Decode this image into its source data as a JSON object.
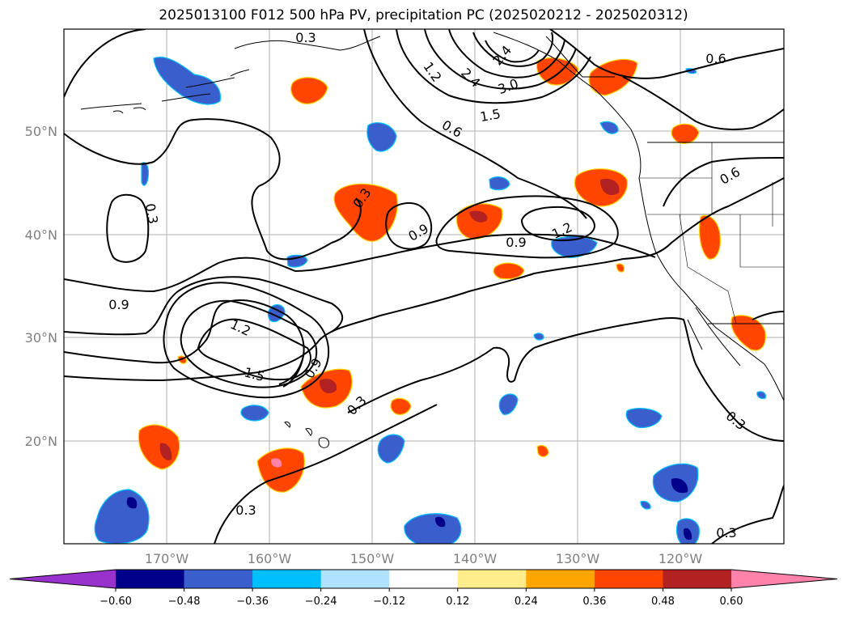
{
  "title": "2025013100 F012 500 hPa PV, precipitation PC (2025020212 - 2025020312)",
  "lat_labels": [
    "50°N",
    "40°N",
    "30°N",
    "20°N"
  ],
  "lon_labels": [
    "170°W",
    "160°W",
    "150°W",
    "140°W",
    "130°W",
    "120°W"
  ],
  "contour_labels": [
    "0.3",
    "0.3",
    "0.3",
    "0.3",
    "0.3",
    "0.3",
    "0.3",
    "0.6",
    "0.6",
    "0.6",
    "0.9",
    "0.9",
    "0.9",
    "0.9",
    "1.2",
    "1.2",
    "1.2",
    "1.5",
    "1.5",
    "2.4",
    "2.4",
    "3.0"
  ],
  "colorbar": {
    "ticks": [
      "−0.60",
      "−0.48",
      "−0.36",
      "−0.24",
      "−0.12",
      "0.12",
      "0.24",
      "0.36",
      "0.48",
      "0.60"
    ],
    "colors": [
      "#9932cc",
      "#00008b",
      "#3a5fcd",
      "#00bfff",
      "#b0e2ff",
      "#ffffff",
      "#ffec8b",
      "#ffa500",
      "#ff4500",
      "#b22222",
      "#ff82ab"
    ]
  }
}
